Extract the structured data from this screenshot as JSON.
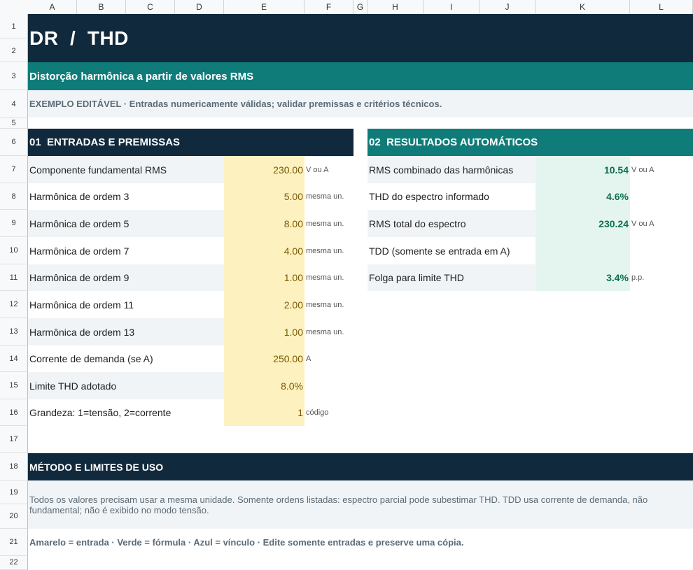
{
  "columns": [
    "A",
    "B",
    "C",
    "D",
    "E",
    "F",
    "G",
    "H",
    "I",
    "J",
    "K",
    "L"
  ],
  "rows": [
    "1",
    "2",
    "3",
    "4",
    "5",
    "6",
    "7",
    "8",
    "9",
    "10",
    "11",
    "12",
    "13",
    "14",
    "15",
    "16",
    "17",
    "18",
    "19",
    "20",
    "21",
    "22"
  ],
  "title": "DR  /  THD",
  "subtitle": "Distorção harmônica a partir de valores RMS",
  "example_note": "EXEMPLO EDITÁVEL · Entradas numericamente válidas; validar premissas e critérios técnicos.",
  "inputs": {
    "header": "01  ENTRADAS E PREMISSAS",
    "items": [
      {
        "label": "Componente fundamental RMS",
        "value": "230.00",
        "unit": "V ou A"
      },
      {
        "label": "Harmônica de ordem 3",
        "value": "5.00",
        "unit": "mesma un."
      },
      {
        "label": "Harmônica de ordem 5",
        "value": "8.00",
        "unit": "mesma un."
      },
      {
        "label": "Harmônica de ordem 7",
        "value": "4.00",
        "unit": "mesma un."
      },
      {
        "label": "Harmônica de ordem 9",
        "value": "1.00",
        "unit": "mesma un."
      },
      {
        "label": "Harmônica de ordem 11",
        "value": "2.00",
        "unit": "mesma un."
      },
      {
        "label": "Harmônica de ordem 13",
        "value": "1.00",
        "unit": "mesma un."
      },
      {
        "label": "Corrente de demanda (se A)",
        "value": "250.00",
        "unit": "A"
      },
      {
        "label": "Limite THD adotado",
        "value": "8.0%",
        "unit": ""
      },
      {
        "label": "Grandeza: 1=tensão, 2=corrente",
        "value": "1",
        "unit": "código"
      }
    ]
  },
  "results": {
    "header": "02  RESULTADOS AUTOMÁTICOS",
    "items": [
      {
        "label": "RMS combinado das harmônicas",
        "value": "10.54",
        "unit": "V ou A"
      },
      {
        "label": "THD do espectro informado",
        "value": "4.6%",
        "unit": ""
      },
      {
        "label": "RMS total do espectro",
        "value": "230.24",
        "unit": "V ou A"
      },
      {
        "label": "TDD (somente se entrada em A)",
        "value": "",
        "unit": ""
      },
      {
        "label": "Folga para limite THD",
        "value": "3.4%",
        "unit": "p.p."
      }
    ]
  },
  "method": {
    "header": "MÉTODO E LIMITES DE USO",
    "text": "Todos os valores precisam usar a mesma unidade. Somente ordens listadas: espectro parcial pode subestimar THD. TDD usa corrente de demanda, não fundamental; não é exibido no modo tensão."
  },
  "legend": "Amarelo = entrada · Verde = fórmula · Azul = vínculo · Edite somente entradas e preserve uma cópia.",
  "colors": {
    "navy": "#11293c",
    "teal": "#0f7c79",
    "input_fill": "#fdf1bf",
    "formula_fill": "#e4f5ef"
  }
}
